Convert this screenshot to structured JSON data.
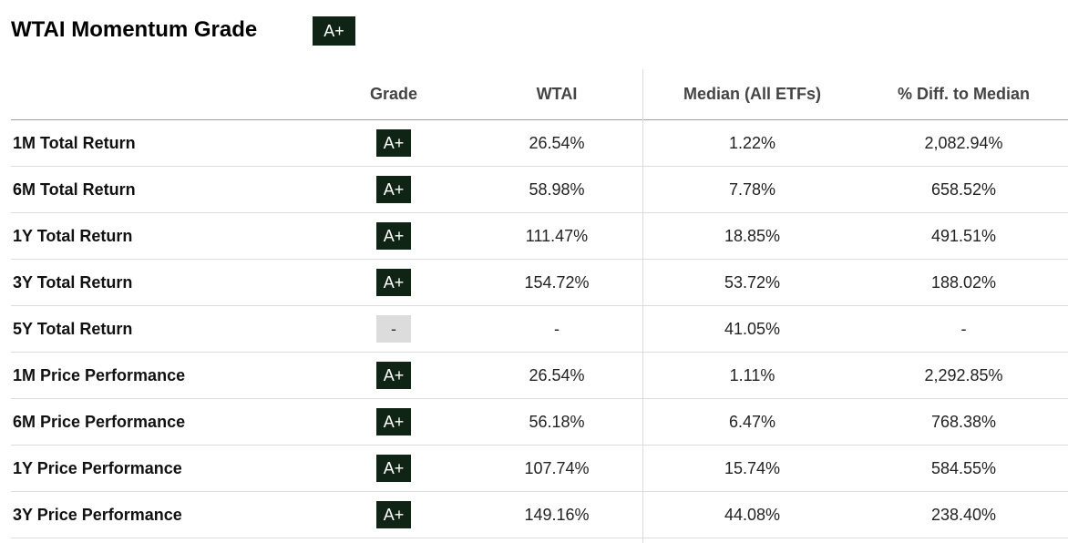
{
  "header": {
    "title": "WTAI Momentum Grade",
    "overall_grade": "A+"
  },
  "table": {
    "columns": [
      "",
      "Grade",
      "WTAI",
      "Median (All ETFs)",
      "% Diff. to Median"
    ],
    "rows": [
      {
        "label": "1M Total Return",
        "grade": "A+",
        "wtai": "26.54%",
        "median": "1.22%",
        "diff": "2,082.94%"
      },
      {
        "label": "6M Total Return",
        "grade": "A+",
        "wtai": "58.98%",
        "median": "7.78%",
        "diff": "658.52%"
      },
      {
        "label": "1Y Total Return",
        "grade": "A+",
        "wtai": "111.47%",
        "median": "18.85%",
        "diff": "491.51%"
      },
      {
        "label": "3Y Total Return",
        "grade": "A+",
        "wtai": "154.72%",
        "median": "53.72%",
        "diff": "188.02%"
      },
      {
        "label": "5Y Total Return",
        "grade": "-",
        "wtai": "-",
        "median": "41.05%",
        "diff": "-"
      },
      {
        "label": "1M Price Performance",
        "grade": "A+",
        "wtai": "26.54%",
        "median": "1.11%",
        "diff": "2,292.85%"
      },
      {
        "label": "6M Price Performance",
        "grade": "A+",
        "wtai": "56.18%",
        "median": "6.47%",
        "diff": "768.38%"
      },
      {
        "label": "1Y Price Performance",
        "grade": "A+",
        "wtai": "107.74%",
        "median": "15.74%",
        "diff": "584.55%"
      },
      {
        "label": "3Y Price Performance",
        "grade": "A+",
        "wtai": "149.16%",
        "median": "44.08%",
        "diff": "238.40%"
      }
    ]
  },
  "colors": {
    "grade_badge_bg": "#0f2414",
    "grade_badge_empty_bg": "#dcdcdc",
    "header_text": "#444444"
  }
}
